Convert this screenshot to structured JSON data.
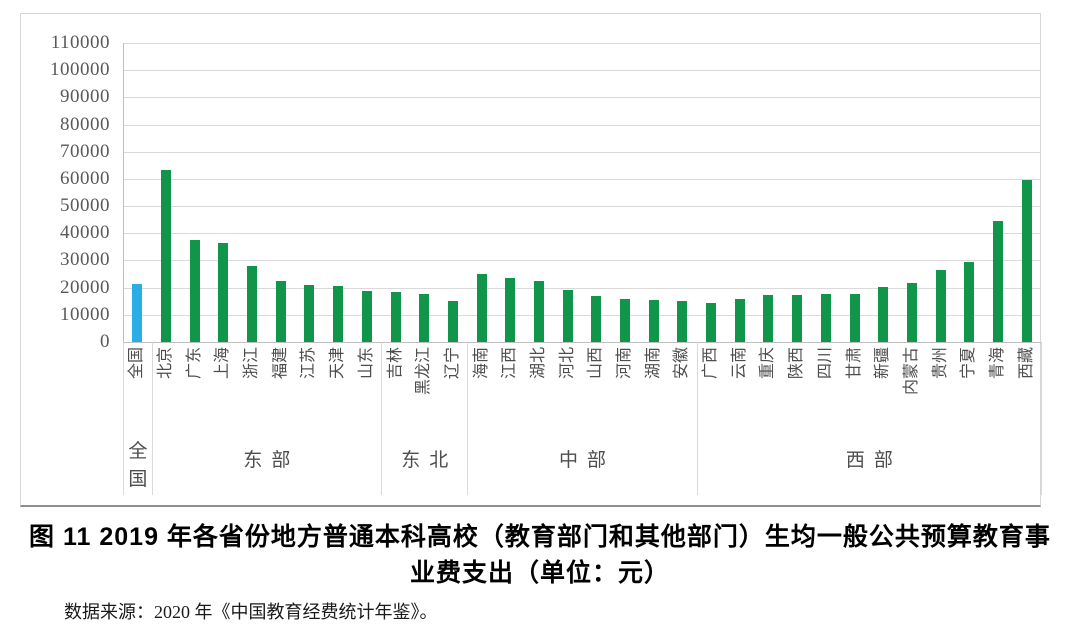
{
  "figure": {
    "title_line1": "图 11 2019 年各省份地方普通本科高校（教育部门和其他部门）生均一般公共预算教育事",
    "title_line2": "业费支出（单位：元）",
    "source": "数据来源：2020 年《中国教育经费统计年鉴》。"
  },
  "chart_data": {
    "type": "bar",
    "title": "图 11 2019 年各省份地方普通本科高校（教育部门和其他部门）生均一般公共预算教育事业费支出（单位：元）",
    "unit": "元",
    "xlabel": "",
    "ylabel": "",
    "ylim": [
      0,
      110000
    ],
    "ytick_step": 10000,
    "grid": true,
    "legend_position": "none",
    "categories": [
      "全国",
      "北京",
      "广东",
      "上海",
      "浙江",
      "福建",
      "江苏",
      "天津",
      "山东",
      "吉林",
      "黑龙江",
      "辽宁",
      "海南",
      "江西",
      "湖北",
      "河北",
      "山西",
      "河南",
      "湖南",
      "安徽",
      "广西",
      "云南",
      "重庆",
      "陕西",
      "四川",
      "甘肃",
      "新疆",
      "内蒙古",
      "贵州",
      "宁夏",
      "青海",
      "西藏"
    ],
    "values": [
      21400,
      63300,
      37400,
      36600,
      27900,
      22600,
      21000,
      20600,
      18600,
      18300,
      17700,
      15000,
      24900,
      23600,
      22300,
      19200,
      16800,
      15900,
      15600,
      15200,
      14500,
      15900,
      17200,
      17300,
      17600,
      17800,
      20100,
      21700,
      26500,
      29400,
      44500,
      59700
    ],
    "groups": [
      {
        "label": "全国",
        "span": 1,
        "vertical": true
      },
      {
        "label": "东部",
        "span": 8,
        "vertical": false
      },
      {
        "label": "东北",
        "span": 3,
        "vertical": false
      },
      {
        "label": "中部",
        "span": 8,
        "vertical": false
      },
      {
        "label": "西部",
        "span": 12,
        "vertical": false
      }
    ],
    "colors": {
      "bar": "#10954a",
      "highlight": "#2aaee5",
      "highlight_category": "全国",
      "grid": "#d9d9d9",
      "axis": "#bfbfbf",
      "tick_label": "#595959"
    }
  }
}
